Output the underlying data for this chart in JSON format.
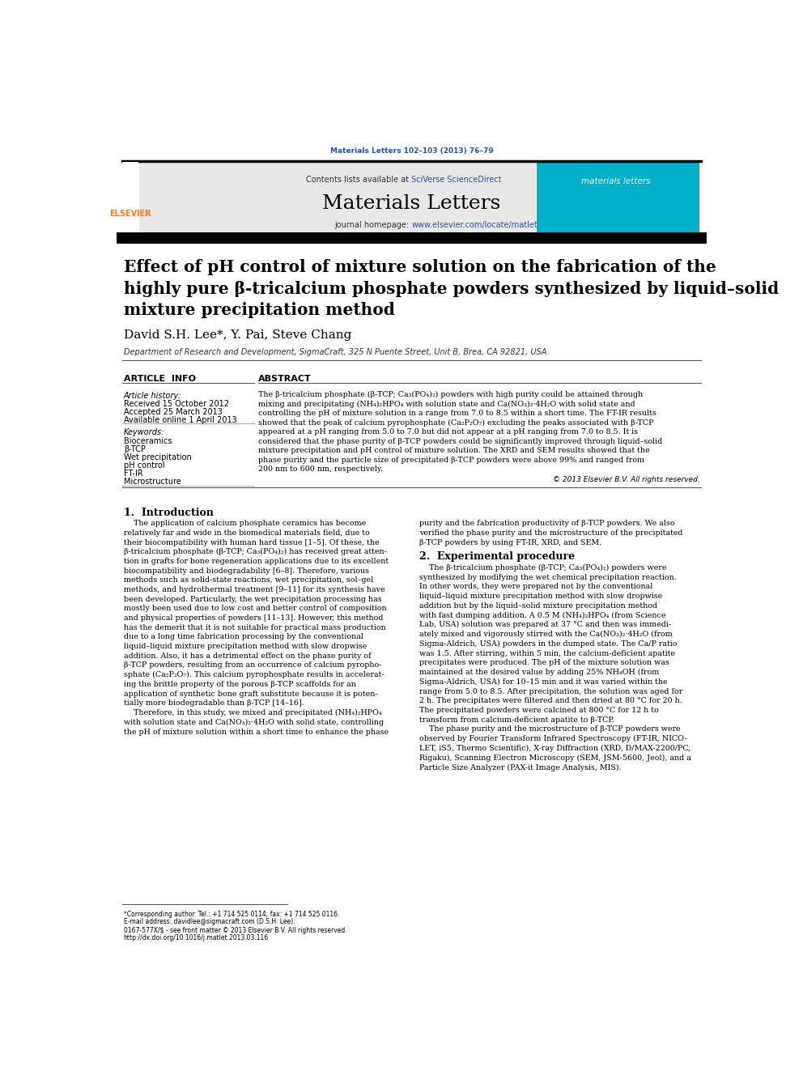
{
  "page_bg": "#ffffff",
  "header_citation": "Materials Letters 102–103 (2013) 76–79",
  "header_citation_color": "#2255aa",
  "journal_name": "Materials Letters",
  "journal_url_color": "#2255aa",
  "header_bg": "#e8e8e8",
  "sciverse_text": "Contents lists available at ",
  "sciverse_link": "SciVerse ScienceDirect",
  "sciverse_link_color": "#2255aa",
  "paper_title": "Effect of pH control of mixture solution on the fabrication of the\nhighly pure β-tricalcium phosphate powders synthesized by liquid–solid\nmixture precipitation method",
  "authors": "David S.H. Lee*, Y. Pai, Steve Chang",
  "affiliation": "Department of Research and Development, SigmaCraft, 325 N Puente Street, Unit B, Brea, CA 92821, USA",
  "article_info_header": "ARTICLE  INFO",
  "abstract_header": "ABSTRACT",
  "article_history_label": "Article history:",
  "received": "Received 15 October 2012",
  "accepted": "Accepted 25 March 2013",
  "available": "Available online 1 April 2013",
  "keywords_label": "Keywords:",
  "keywords": [
    "Bioceramics",
    "β-TCP",
    "Wet precipitation",
    "pH control",
    "FT-IR",
    "Microstructure"
  ],
  "abstract_text": "The β-tricalcium phosphate (β-TCP; Ca₃(PO₄)₂) powders with high purity could be attained through\nmixing and precipitating (NH₄)₂HPO₄ with solution state and Ca(NO₃)₂·4H₂O with solid state and\ncontrolling the pH of mixture solution in a range from 7.0 to 8.5 within a short time. The FT-IR results\nshowed that the peak of calcium pyrophosphate (Ca₂P₂O₇) excluding the peaks associated with β-TCP\nappeared at a pH ranging from 5.0 to 7.0 but did not appear at a pH ranging from 7.0 to 8.5. It is\nconsidered that the phase purity of β-TCP powders could be significantly improved through liquid–solid\nmixture precipitation and pH control of mixture solution. The XRD and SEM results showed that the\nphase purity and the particle size of precipitated β-TCP powders were above 99% and ranged from\n200 nm to 600 nm, respectively.",
  "copyright": "© 2013 Elsevier B.V. All rights reserved.",
  "intro_heading": "1.  Introduction",
  "exp_heading": "2.  Experimental procedure",
  "footnote1": "*Corresponding author. Tel.: +1 714 525 0114; fax: +1 714 525 0116.",
  "footnote2": "E-mail address: davidlee@sigmacraft.com (D.S.H. Lee).",
  "footnote3": "0167-577X/$ - see front matter © 2013 Elsevier B.V. All rights reserved.",
  "footnote4": "http://dx.doi.org/10.1016/j.matlet.2013.03.116",
  "elsevier_orange": "#f47920"
}
